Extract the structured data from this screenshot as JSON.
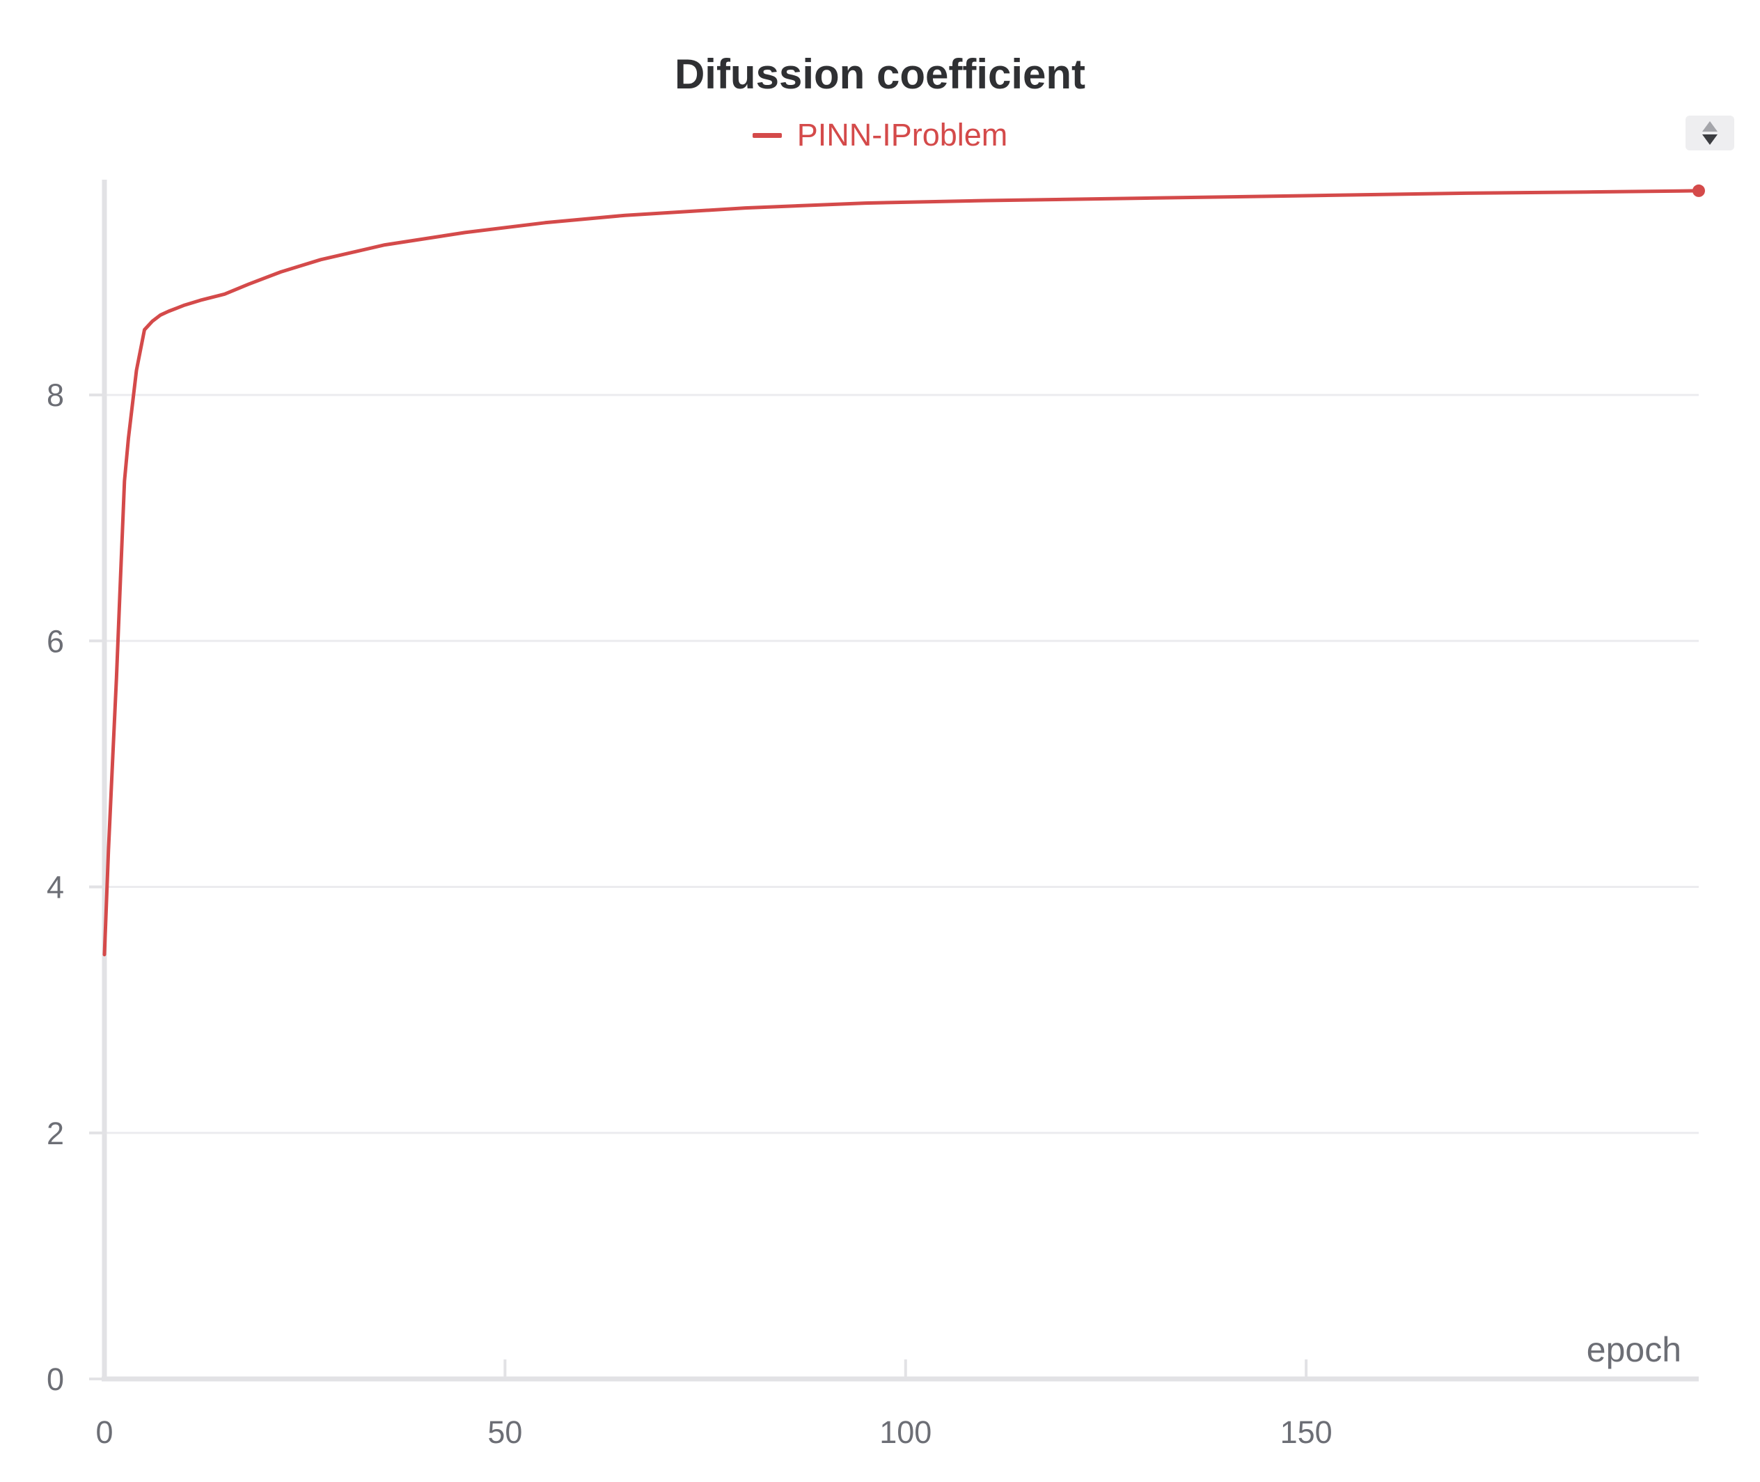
{
  "chart_data": {
    "type": "line",
    "title": "Difussion coefficient",
    "xlabel": "epoch",
    "ylabel": "",
    "xlim": [
      0,
      199
    ],
    "ylim": [
      0,
      9.75
    ],
    "xticks": [
      0,
      50,
      100,
      150
    ],
    "yticks": [
      0,
      2,
      4,
      6,
      8
    ],
    "grid": "horizontal",
    "legend_position": "top-center",
    "series": [
      {
        "name": "PINN-IProblem",
        "color": "#d44a4a",
        "x": [
          0,
          0.5,
          1,
          1.5,
          2,
          2.5,
          3,
          4,
          5,
          6,
          7,
          8,
          10,
          12,
          15,
          18,
          22,
          27,
          35,
          45,
          55,
          65,
          80,
          95,
          110,
          130,
          150,
          170,
          185,
          199
        ],
        "y": [
          3.45,
          4.3,
          5.0,
          5.7,
          6.5,
          7.3,
          7.65,
          8.2,
          8.53,
          8.6,
          8.65,
          8.68,
          8.73,
          8.77,
          8.82,
          8.9,
          9.0,
          9.1,
          9.22,
          9.32,
          9.4,
          9.46,
          9.52,
          9.56,
          9.58,
          9.6,
          9.62,
          9.64,
          9.65,
          9.66
        ]
      }
    ]
  }
}
